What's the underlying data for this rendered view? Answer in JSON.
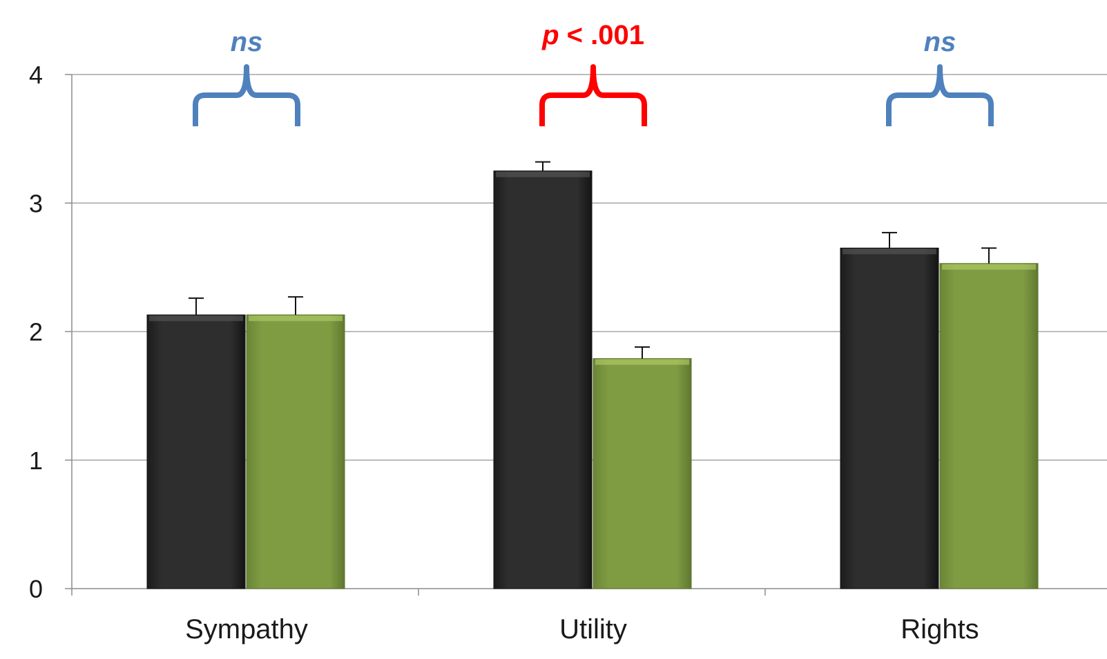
{
  "chart_data": {
    "type": "bar",
    "title": "",
    "xlabel": "",
    "ylabel": "",
    "ylim": [
      0,
      4
    ],
    "yticks": [
      "0",
      "1",
      "2",
      "3",
      "4"
    ],
    "categories": [
      "Sympathy",
      "Utility",
      "Rights"
    ],
    "grid": true,
    "legend": "none",
    "series": [
      {
        "color": "#2b2b2b",
        "values": [
          2.13,
          3.25,
          2.65
        ],
        "errors": [
          0.13,
          0.07,
          0.12
        ]
      },
      {
        "color": "#7c9a41",
        "values": [
          2.13,
          1.79,
          2.53
        ],
        "errors": [
          0.14,
          0.09,
          0.12
        ]
      }
    ],
    "annotations": [
      {
        "category": "Sympathy",
        "italic": "ns",
        "text": "",
        "color": "#4f81bd"
      },
      {
        "category": "Utility",
        "italic": "p",
        "text": " < .001",
        "color": "#ff0000"
      },
      {
        "category": "Rights",
        "italic": "ns",
        "text": "",
        "color": "#4f81bd"
      }
    ]
  }
}
